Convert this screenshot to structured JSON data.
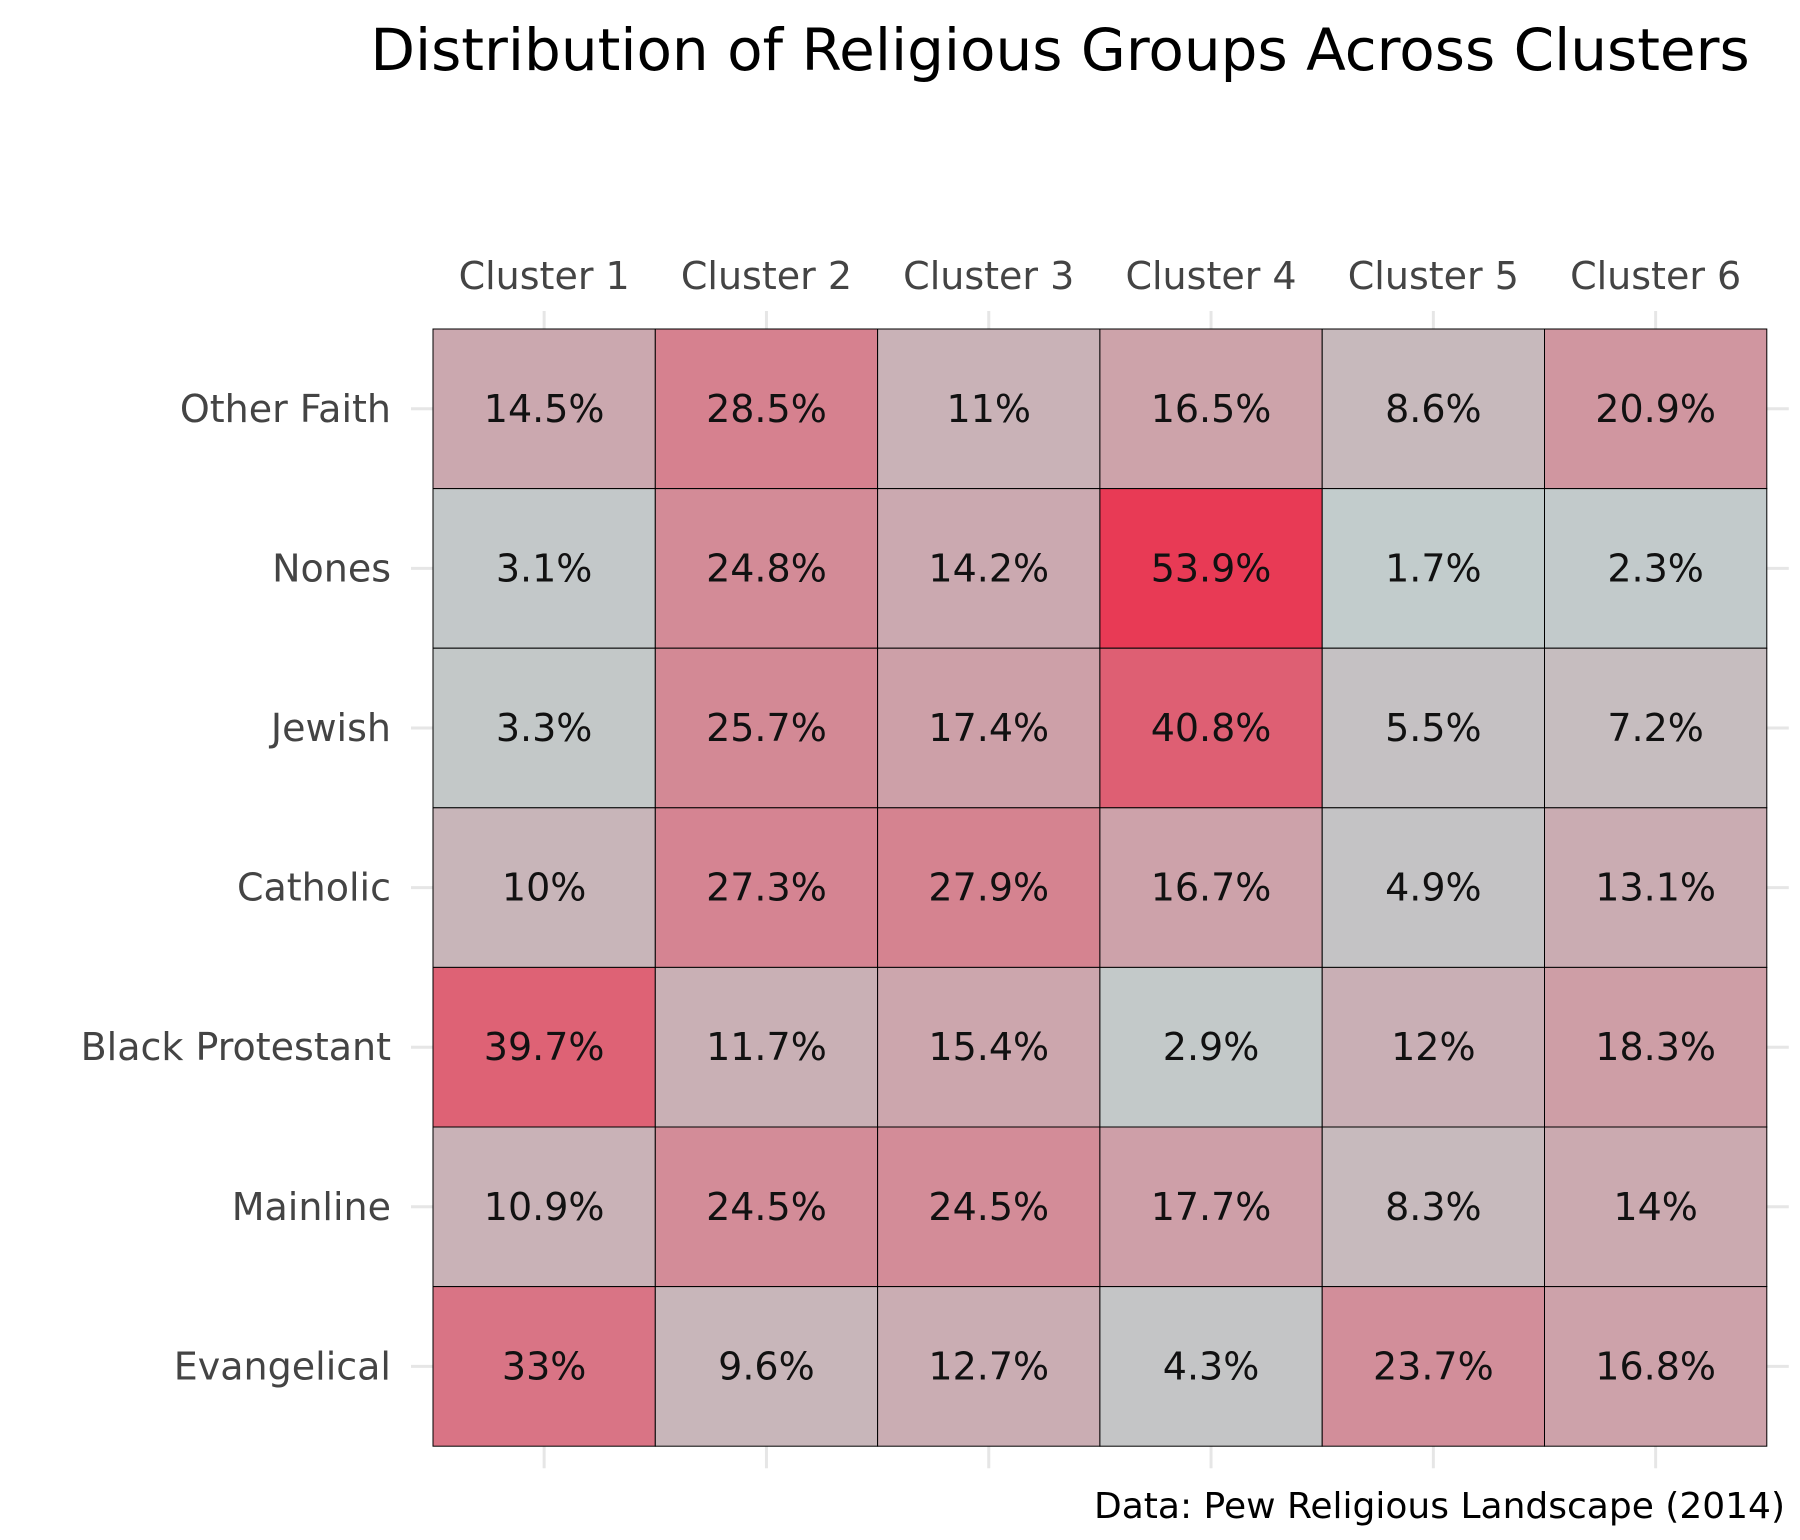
{
  "chart_data": {
    "type": "heatmap",
    "title": "Distribution of Religious Groups Across Clusters",
    "caption": "Data: Pew Religious Landscape (2014)",
    "x_categories": [
      "Cluster 1",
      "Cluster 2",
      "Cluster 3",
      "Cluster 4",
      "Cluster 5",
      "Cluster 6"
    ],
    "y_categories": [
      "Other Faith",
      "Nones",
      "Jewish",
      "Catholic",
      "Black Protestant",
      "Mainline",
      "Evangelical"
    ],
    "values": [
      [
        14.5,
        28.5,
        11,
        16.5,
        8.6,
        20.9
      ],
      [
        3.1,
        24.8,
        14.2,
        53.9,
        1.7,
        2.3
      ],
      [
        3.3,
        25.7,
        17.4,
        40.8,
        5.5,
        7.2
      ],
      [
        10,
        27.3,
        27.9,
        16.7,
        4.9,
        13.1
      ],
      [
        39.7,
        11.7,
        15.4,
        2.9,
        12,
        18.3
      ],
      [
        10.9,
        24.5,
        24.5,
        17.7,
        8.3,
        14
      ],
      [
        33,
        9.6,
        12.7,
        4.3,
        23.7,
        16.8
      ]
    ],
    "value_suffix": "%",
    "color_low": "#c2cccc",
    "color_high": "#e83a55",
    "x_axis_position": "top",
    "grid": true,
    "legend": "none"
  }
}
